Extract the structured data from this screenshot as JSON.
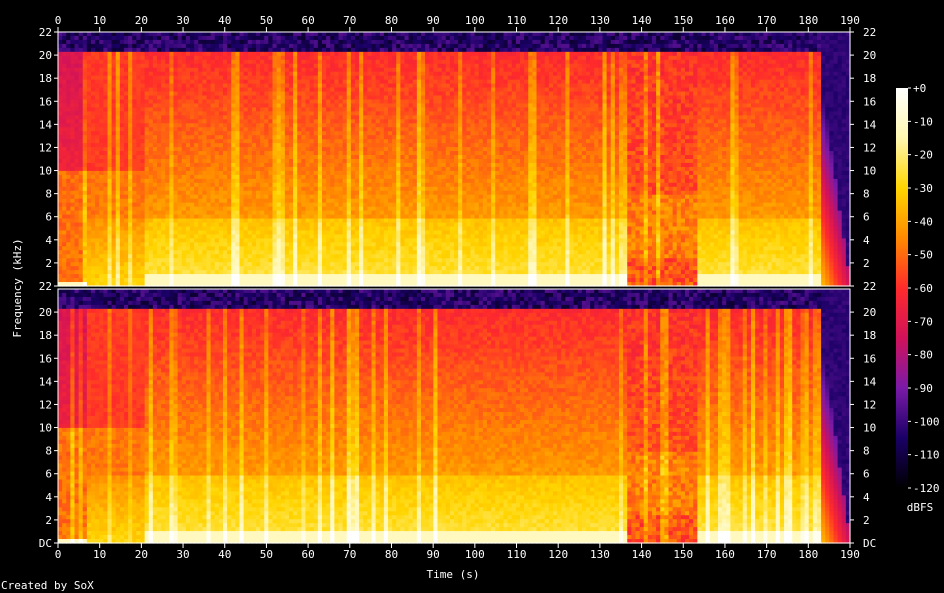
{
  "chart_data": {
    "type": "heatmap",
    "title": "",
    "xlabel": "Time (s)",
    "ylabel": "Frequency (kHz)",
    "footer": "Created by SoX",
    "colorbar_label": "dBFS",
    "xlim": [
      0,
      190
    ],
    "ylim_khz": [
      0,
      22
    ],
    "x_ticks": [
      "0",
      "10",
      "20",
      "30",
      "40",
      "50",
      "60",
      "70",
      "80",
      "90",
      "100",
      "110",
      "120",
      "130",
      "140",
      "150",
      "160",
      "170",
      "180",
      "190"
    ],
    "y_ticks": [
      "DC",
      "2",
      "4",
      "6",
      "8",
      "10",
      "12",
      "14",
      "16",
      "18",
      "20",
      "22"
    ],
    "colorbar_ticks": [
      "+0",
      "-10",
      "-20",
      "-30",
      "-40",
      "-50",
      "-60",
      "-70",
      "-80",
      "-90",
      "-100",
      "-110",
      "-120"
    ],
    "colorbar_range_dbfs": [
      -120,
      0
    ],
    "channels": [
      {
        "name": "",
        "content_end_s": 183
      },
      {
        "name": "",
        "content_end_s": 183
      }
    ],
    "segments_s": [
      {
        "start": 0,
        "end": 7,
        "level": "low"
      },
      {
        "start": 7,
        "end": 21,
        "level": "mid"
      },
      {
        "start": 21,
        "end": 78,
        "level": "high"
      },
      {
        "start": 78,
        "end": 117,
        "level": "high"
      },
      {
        "start": 117,
        "end": 137,
        "level": "high"
      },
      {
        "start": 137,
        "end": 153,
        "level": "sparse"
      },
      {
        "start": 153,
        "end": 183,
        "level": "high"
      },
      {
        "start": 183,
        "end": 190,
        "level": "fade"
      }
    ],
    "colors": [
      "#000000",
      "#1a0066",
      "#7a1aa8",
      "#d1125a",
      "#ff2b2b",
      "#ff8a00",
      "#ffd500",
      "#fff7b0",
      "#ffffff"
    ]
  }
}
